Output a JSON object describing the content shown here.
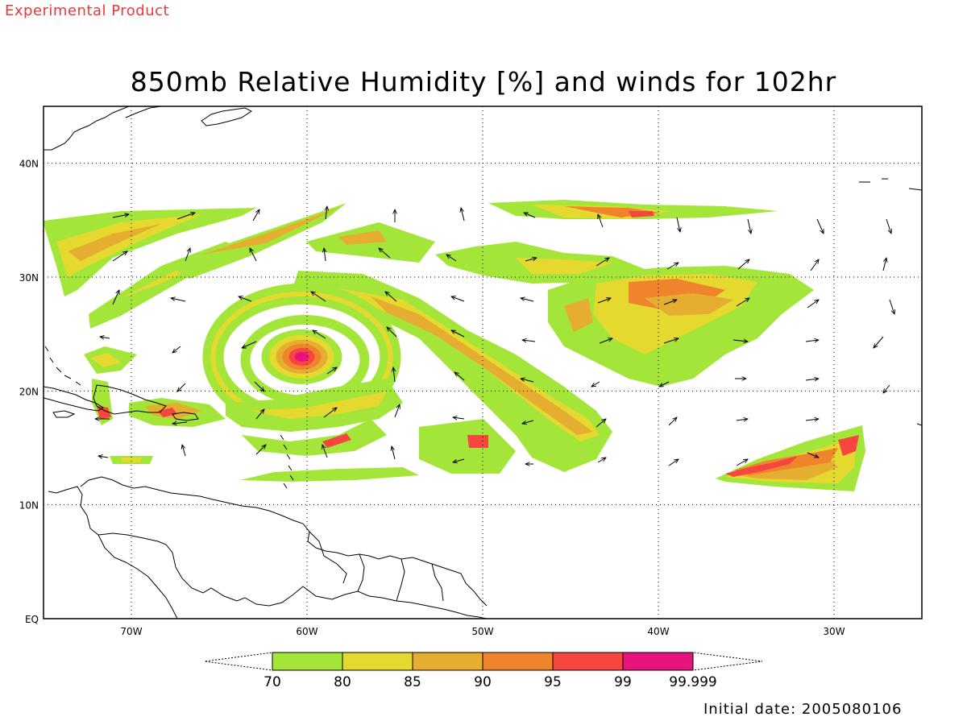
{
  "header": {
    "product_label": "Experimental Product",
    "product_label_color": "#e8393c",
    "title": "850mb Relative Humidity [%] and winds for 102hr"
  },
  "map": {
    "projection": "lat-lon",
    "lon_range": [
      -75,
      -25
    ],
    "lat_range": [
      0,
      45
    ],
    "lat_ticks": [
      {
        "value": 40,
        "label": "40N"
      },
      {
        "value": 30,
        "label": "30N"
      },
      {
        "value": 20,
        "label": "20N"
      },
      {
        "value": 10,
        "label": "10N"
      },
      {
        "value": 0,
        "label": "EQ"
      }
    ],
    "lon_ticks": [
      {
        "value": -70,
        "label": "70W"
      },
      {
        "value": -60,
        "label": "60W"
      },
      {
        "value": -50,
        "label": "50W"
      },
      {
        "value": -40,
        "label": "40W"
      },
      {
        "value": -30,
        "label": "30W"
      }
    ],
    "grid": "dotted",
    "storm_center": {
      "lon": -60.3,
      "lat": 23.0
    }
  },
  "legend": {
    "thresholds": [
      "70",
      "80",
      "85",
      "90",
      "95",
      "99",
      "99.999"
    ],
    "colors": [
      "#a3e639",
      "#e5d930",
      "#e5ae30",
      "#f0842c",
      "#f5473f",
      "#e8147e"
    ]
  },
  "footer": {
    "initial_date": "Initial date: 2005080106"
  }
}
